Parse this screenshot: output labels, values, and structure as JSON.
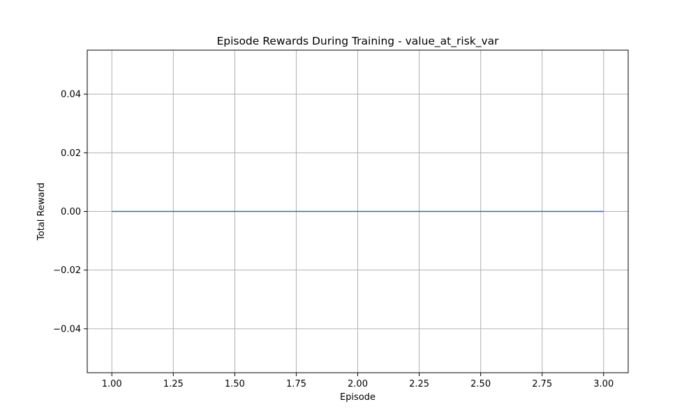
{
  "chart_data": {
    "type": "line",
    "title": "Episode Rewards During Training - value_at_risk_var",
    "xlabel": "Episode",
    "ylabel": "Total Reward",
    "xlim": [
      0.9,
      3.1
    ],
    "ylim": [
      -0.055,
      0.055
    ],
    "xticks": [
      1.0,
      1.25,
      1.5,
      1.75,
      2.0,
      2.25,
      2.5,
      2.75,
      3.0
    ],
    "xtick_labels": [
      "1.00",
      "1.25",
      "1.50",
      "1.75",
      "2.00",
      "2.25",
      "2.50",
      "2.75",
      "3.00"
    ],
    "yticks": [
      -0.04,
      -0.02,
      0.0,
      0.02,
      0.04
    ],
    "ytick_labels": [
      "−0.04",
      "−0.02",
      "0.00",
      "0.02",
      "0.04"
    ],
    "grid": true,
    "series": [
      {
        "color": "#1f77b4",
        "x": [
          1,
          2,
          3
        ],
        "y": [
          0,
          0,
          0
        ]
      }
    ]
  }
}
